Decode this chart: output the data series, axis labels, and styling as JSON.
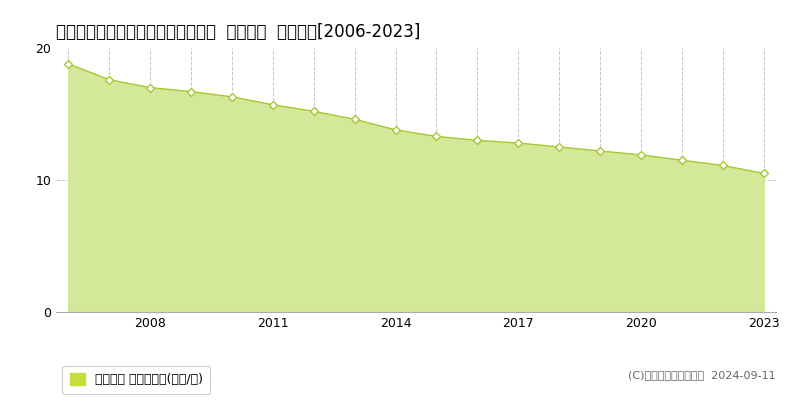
{
  "title": "鹿児島県いちき串木野市曙町４番外  地価公示  地価推移[2006-2023]",
  "years": [
    2006,
    2007,
    2008,
    2009,
    2010,
    2011,
    2012,
    2013,
    2014,
    2015,
    2016,
    2017,
    2018,
    2019,
    2020,
    2021,
    2022,
    2023
  ],
  "values": [
    18.8,
    17.6,
    17.0,
    16.7,
    16.3,
    15.7,
    15.2,
    14.6,
    13.8,
    13.3,
    13.0,
    12.8,
    12.5,
    12.2,
    11.9,
    11.5,
    11.1,
    10.5
  ],
  "line_color": "#a8c832",
  "fill_color": "#d4e89a",
  "marker_face": "#ffffff",
  "marker_edge": "#a8c832",
  "grid_color": "#c8c8c8",
  "background_color": "#ffffff",
  "plot_bg_color": "#f5f5f5",
  "ylim": [
    0,
    20
  ],
  "yticks": [
    0,
    10,
    20
  ],
  "xticks": [
    2008,
    2011,
    2014,
    2017,
    2020,
    2023
  ],
  "legend_label": "地価公示 平均坪単価(万円/坪)",
  "legend_color": "#c8dc3c",
  "copyright_text": "(C)土地価格ドットコム  2024-09-11",
  "title_fontsize": 12,
  "tick_fontsize": 9,
  "legend_fontsize": 9
}
